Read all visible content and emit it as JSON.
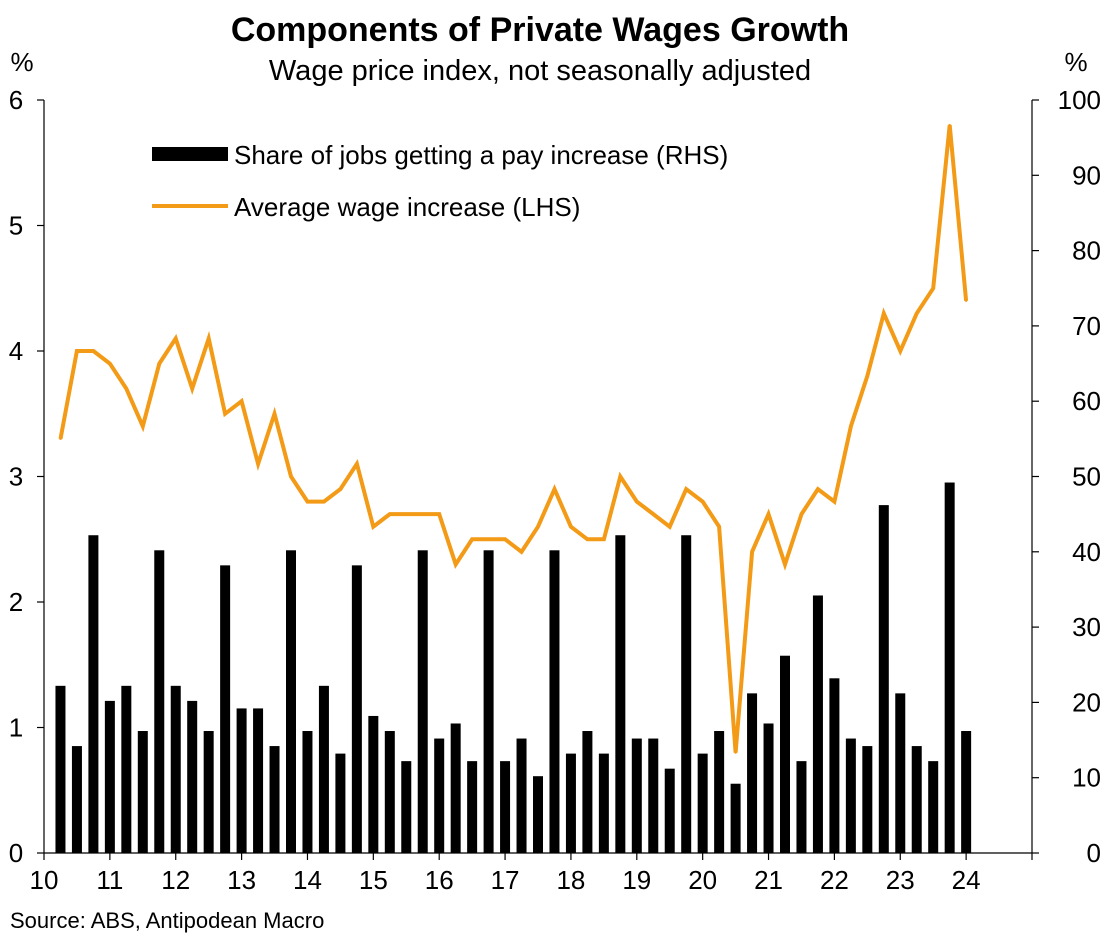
{
  "chart_data": {
    "type": "bar+line",
    "title": "Components of Private Wages Growth",
    "subtitle": "Wage price index, not seasonally adjusted",
    "source": "Source: ABS, Antipodean Macro",
    "left_axis": {
      "unit_label": "%",
      "min": 0,
      "max": 6,
      "ticks": [
        "0",
        "1",
        "2",
        "3",
        "4",
        "5",
        "6"
      ]
    },
    "right_axis": {
      "unit_label": "%",
      "min": 0,
      "max": 100,
      "ticks": [
        "0",
        "10",
        "20",
        "30",
        "40",
        "50",
        "60",
        "70",
        "80",
        "90",
        "100"
      ]
    },
    "x_axis": {
      "min": 10,
      "max": 25,
      "ticks": [
        "10",
        "11",
        "12",
        "13",
        "14",
        "15",
        "16",
        "17",
        "18",
        "19",
        "20",
        "21",
        "22",
        "23",
        "24"
      ]
    },
    "legend": {
      "position": "top-left",
      "bar_label": "Share of jobs getting a pay increase (RHS)",
      "line_label": "Average wage increase (LHS)"
    },
    "colors": {
      "bars": "#000000",
      "line": "#F39A16",
      "axis": "#000000"
    },
    "x": [
      10.25,
      10.5,
      10.75,
      11,
      11.25,
      11.5,
      11.75,
      12,
      12.25,
      12.5,
      12.75,
      13,
      13.25,
      13.5,
      13.75,
      14,
      14.25,
      14.5,
      14.75,
      15,
      15.25,
      15.5,
      15.75,
      16,
      16.25,
      16.5,
      16.75,
      17,
      17.25,
      17.5,
      17.75,
      18,
      18.25,
      18.5,
      18.75,
      19,
      19.25,
      19.5,
      19.75,
      20,
      20.25,
      20.5,
      20.75,
      21,
      21.25,
      21.5,
      21.75,
      22,
      22.25,
      22.5,
      22.75,
      23,
      23.25,
      23.5,
      23.75,
      24
    ],
    "series": [
      {
        "name": "Share of jobs getting a pay increase (RHS)",
        "axis": "right",
        "kind": "bar",
        "values": [
          22.2,
          14.2,
          42.2,
          20.2,
          22.2,
          16.2,
          40.2,
          22.2,
          20.2,
          16.2,
          38.2,
          19.2,
          19.2,
          14.2,
          40.2,
          16.2,
          22.2,
          13.2,
          38.2,
          18.2,
          16.2,
          12.2,
          40.2,
          15.2,
          17.2,
          12.2,
          40.2,
          12.2,
          15.2,
          10.2,
          40.2,
          13.2,
          16.2,
          13.2,
          42.2,
          15.2,
          15.2,
          11.2,
          42.2,
          13.2,
          16.2,
          9.2,
          21.2,
          17.2,
          26.2,
          12.2,
          34.2,
          23.2,
          15.2,
          14.2,
          46.2,
          21.2,
          14.2,
          12.2,
          49.2,
          16.2
        ]
      },
      {
        "name": "Average wage increase (LHS)",
        "axis": "left",
        "kind": "line",
        "values": [
          3.3,
          4.0,
          4.0,
          3.9,
          3.7,
          3.4,
          3.9,
          4.1,
          3.7,
          4.1,
          3.5,
          3.6,
          3.1,
          3.5,
          3.0,
          2.8,
          2.8,
          2.9,
          3.1,
          2.6,
          2.7,
          2.7,
          2.7,
          2.7,
          2.3,
          2.5,
          2.5,
          2.5,
          2.4,
          2.6,
          2.9,
          2.6,
          2.5,
          2.5,
          3.0,
          2.8,
          2.7,
          2.6,
          2.9,
          2.8,
          2.6,
          0.8,
          2.4,
          2.7,
          2.3,
          2.7,
          2.9,
          2.8,
          3.4,
          3.8,
          4.3,
          4.0,
          4.3,
          4.5,
          5.8,
          4.4
        ]
      }
    ]
  }
}
